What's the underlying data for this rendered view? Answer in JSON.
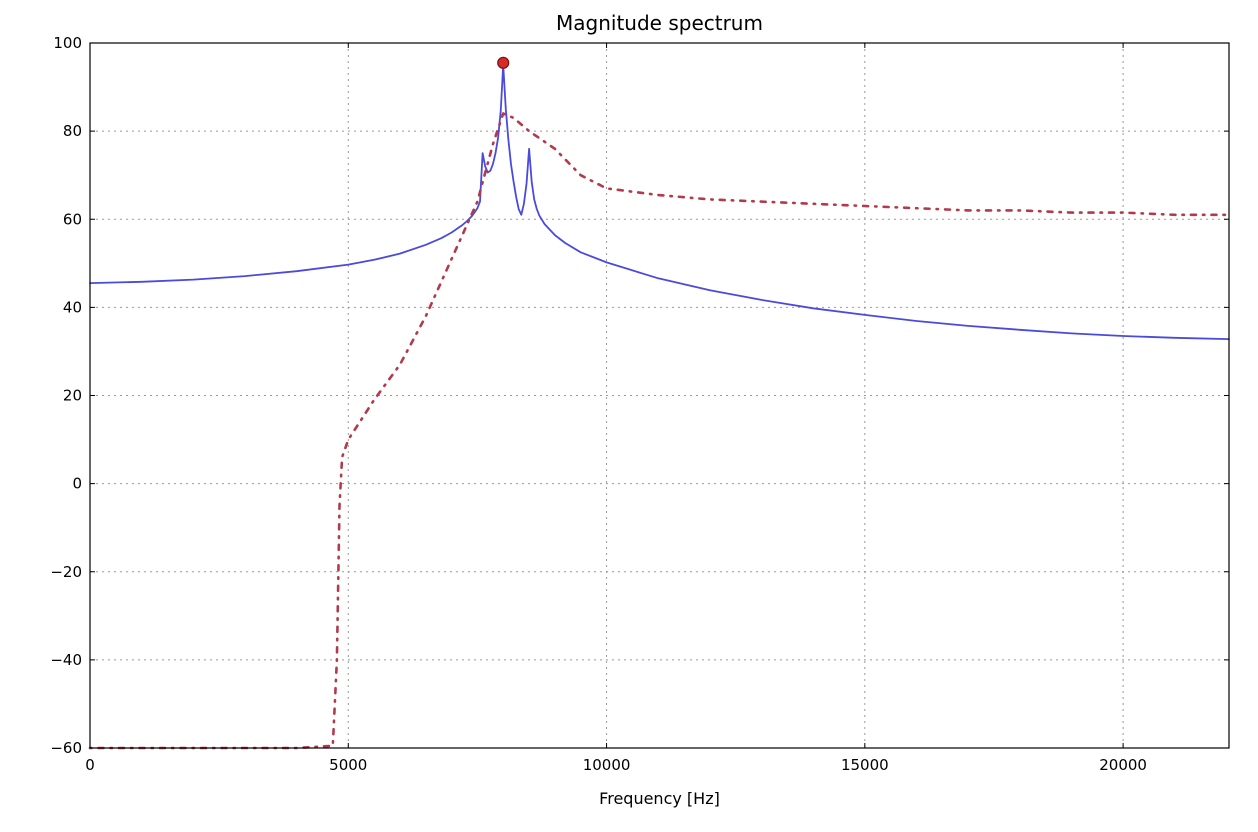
{
  "chart_data": {
    "type": "line",
    "title": "Magnitude spectrum",
    "xlabel": "Frequency [Hz]",
    "ylabel": "",
    "xlim": [
      0,
      22050
    ],
    "ylim": [
      -60,
      100
    ],
    "xticks": [
      0,
      5000,
      10000,
      15000,
      20000
    ],
    "yticks": [
      -60,
      -40,
      -20,
      0,
      20,
      40,
      60,
      80,
      100
    ],
    "grid": true,
    "legend": "none",
    "series": [
      {
        "style": "solid",
        "color": "#4a4adf",
        "x": [
          0,
          1000,
          2000,
          3000,
          4000,
          5000,
          5500,
          6000,
          6500,
          6800,
          7000,
          7200,
          7300,
          7400,
          7500,
          7550,
          7600,
          7650,
          7700,
          7750,
          7800,
          7850,
          7900,
          7950,
          8000,
          8050,
          8100,
          8150,
          8200,
          8250,
          8300,
          8350,
          8400,
          8450,
          8500,
          8550,
          8600,
          8650,
          8700,
          8800,
          9000,
          9200,
          9500,
          10000,
          11000,
          12000,
          13000,
          14000,
          15000,
          16000,
          17000,
          18000,
          19000,
          20000,
          21000,
          22050
        ],
        "y": [
          45.5,
          45.8,
          46.3,
          47.1,
          48.2,
          49.7,
          50.8,
          52.2,
          54.2,
          55.7,
          57.0,
          58.6,
          59.6,
          60.8,
          62.5,
          64.0,
          75.0,
          72.0,
          70.6,
          71.0,
          72.5,
          75.0,
          78.5,
          84.5,
          95.0,
          85.0,
          78.0,
          72.5,
          68.5,
          65.0,
          62.3,
          61.0,
          63.5,
          68.0,
          76.0,
          68.5,
          64.5,
          62.3,
          60.8,
          58.9,
          56.4,
          54.6,
          52.5,
          50.2,
          46.6,
          43.9,
          41.7,
          39.8,
          38.3,
          36.9,
          35.8,
          34.9,
          34.1,
          33.5,
          33.1,
          32.8
        ]
      },
      {
        "style": "dash-dot",
        "color": "#b33a4a",
        "x": [
          0,
          2000,
          4000,
          4700,
          4780,
          4830,
          4880,
          5000,
          5500,
          6000,
          6500,
          7000,
          7500,
          7800,
          8000,
          8200,
          8500,
          9000,
          9500,
          10000,
          11000,
          12000,
          13000,
          14000,
          15000,
          16000,
          17000,
          18000,
          19000,
          20000,
          21000,
          22050
        ],
        "y": [
          -60,
          -60,
          -60,
          -59.5,
          -40,
          -5,
          6,
          10,
          19,
          27,
          38,
          51,
          64,
          77,
          84,
          83,
          80,
          76,
          70,
          67,
          65.5,
          64.5,
          64,
          63.5,
          63,
          62.5,
          62,
          62,
          61.5,
          61.5,
          61,
          61
        ]
      }
    ],
    "annotations": [
      {
        "type": "marker",
        "x": 8000,
        "y": 95.5,
        "color": "#d42a2a"
      }
    ]
  }
}
